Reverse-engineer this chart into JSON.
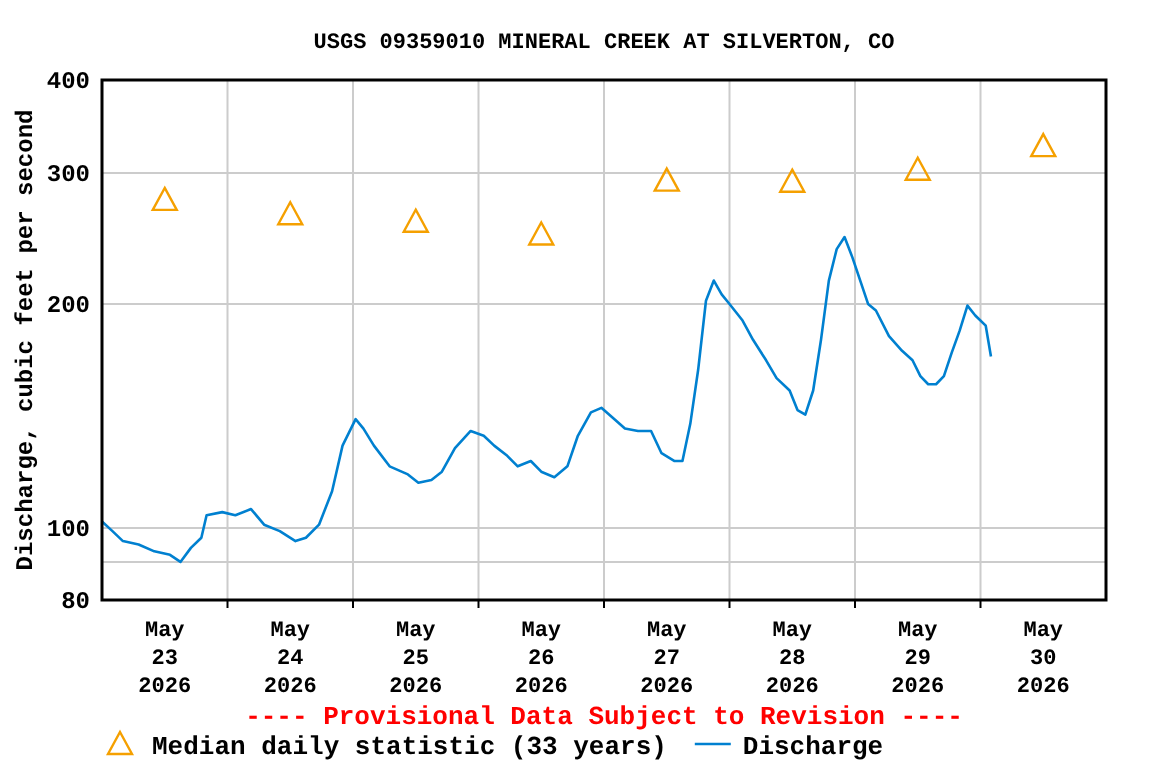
{
  "chart_data": {
    "type": "line",
    "title": "USGS 09359010 MINERAL CREEK AT SILVERTON, CO",
    "ylabel": "Discharge, cubic feet per second",
    "log": true,
    "grid": true,
    "legend": "bottom",
    "annotations": [
      "---- Provisional Data Subject to Revision ----"
    ],
    "xlim": [
      "2026-05-23T00:00",
      "2026-05-31T00:00"
    ],
    "xticks": [
      {
        "value": "2026-05-23T12:00",
        "label": "May\n23\n2026"
      },
      {
        "value": "2026-05-24T00:00",
        "label": null
      },
      {
        "value": "2026-05-24T12:00",
        "label": "May\n24\n2026"
      },
      {
        "value": "2026-05-25T00:00",
        "label": null
      },
      {
        "value": "2026-05-25T12:00",
        "label": "May\n25\n2026"
      },
      {
        "value": "2026-05-26T00:00",
        "label": null
      },
      {
        "value": "2026-05-26T12:00",
        "label": "May\n26\n2026"
      },
      {
        "value": "2026-05-27T00:00",
        "label": null
      },
      {
        "value": "2026-05-27T12:00",
        "label": "May\n27\n2026"
      },
      {
        "value": "2026-05-28T00:00",
        "label": null
      },
      {
        "value": "2026-05-28T12:00",
        "label": "May\n28\n2026"
      },
      {
        "value": "2026-05-29T00:00",
        "label": null
      },
      {
        "value": "2026-05-29T12:00",
        "label": "May\n29\n2026"
      },
      {
        "value": "2026-05-30T00:00",
        "label": null
      },
      {
        "value": "2026-05-30T12:00",
        "label": "May\n30\n2026"
      }
    ],
    "ylim": [
      80,
      400
    ],
    "yticks": [
      80,
      {
        "value": 90,
        "label": null
      },
      100,
      200,
      300,
      400
    ],
    "series": [
      {
        "name": "Median daily statistic (33 years)",
        "type": "scatter",
        "marker": "triangle",
        "color": "#f5a000",
        "x": [
          "2026-05-23T12:00",
          "2026-05-24T12:00",
          "2026-05-25T12:00",
          "2026-05-26T12:00",
          "2026-05-27T12:00",
          "2026-05-28T12:00",
          "2026-05-29T12:00",
          "2026-05-30T12:00"
        ],
        "values": [
          276,
          264,
          258,
          248,
          293,
          292,
          303,
          326
        ]
      },
      {
        "name": "Discharge",
        "color": "#0080d0",
        "line_style": "solid",
        "x": [
          "2026-05-23T00:00",
          "2026-05-23T02:00",
          "2026-05-23T04:00",
          "2026-05-23T07:00",
          "2026-05-23T10:00",
          "2026-05-23T13:00",
          "2026-05-23T15:00",
          "2026-05-23T17:00",
          "2026-05-23T19:00",
          "2026-05-23T20:00",
          "2026-05-23T23:00",
          "2026-05-24T01:30",
          "2026-05-24T04:30",
          "2026-05-24T07:00",
          "2026-05-24T10:00",
          "2026-05-24T13:00",
          "2026-05-24T15:00",
          "2026-05-24T17:30",
          "2026-05-24T20:00",
          "2026-05-24T22:00",
          "2026-05-25T00:30",
          "2026-05-25T02:00",
          "2026-05-25T04:00",
          "2026-05-25T07:00",
          "2026-05-25T10:30",
          "2026-05-25T12:30",
          "2026-05-25T15:00",
          "2026-05-25T17:00",
          "2026-05-25T19:30",
          "2026-05-25T22:30",
          "2026-05-26T01:00",
          "2026-05-26T03:00",
          "2026-05-26T05:30",
          "2026-05-26T07:30",
          "2026-05-26T10:00",
          "2026-05-26T12:00",
          "2026-05-26T14:30",
          "2026-05-26T17:00",
          "2026-05-26T19:00",
          "2026-05-26T21:30",
          "2026-05-26T23:30",
          "2026-05-27T02:00",
          "2026-05-27T04:00",
          "2026-05-27T06:30",
          "2026-05-27T09:00",
          "2026-05-27T11:00",
          "2026-05-27T13:30",
          "2026-05-27T15:00",
          "2026-05-27T16:30",
          "2026-05-27T18:00",
          "2026-05-27T19:30",
          "2026-05-27T21:00",
          "2026-05-27T22:30",
          "2026-05-28T00:00",
          "2026-05-28T02:30",
          "2026-05-28T04:30",
          "2026-05-28T07:00",
          "2026-05-28T09:00",
          "2026-05-28T11:30",
          "2026-05-28T13:00",
          "2026-05-28T14:30",
          "2026-05-28T16:00",
          "2026-05-28T17:30",
          "2026-05-28T19:00",
          "2026-05-28T20:30",
          "2026-05-28T22:00",
          "2026-05-28T23:30",
          "2026-05-29T01:00",
          "2026-05-29T02:30",
          "2026-05-29T04:00",
          "2026-05-29T06:30",
          "2026-05-29T09:00",
          "2026-05-29T11:00",
          "2026-05-29T12:30",
          "2026-05-29T14:00",
          "2026-05-29T15:30",
          "2026-05-29T17:00",
          "2026-05-29T18:30",
          "2026-05-29T20:00",
          "2026-05-29T21:30",
          "2026-05-29T23:00",
          "2026-05-30T01:00",
          "2026-05-30T02:00"
        ],
        "values": [
          102,
          99,
          96,
          95,
          93,
          92,
          90,
          94,
          97,
          104,
          105,
          104,
          106,
          101,
          99,
          96,
          97,
          101,
          112,
          129,
          140,
          136,
          129,
          121,
          118,
          115,
          116,
          119,
          128,
          135,
          133,
          129,
          125,
          121,
          123,
          119,
          117,
          121,
          133,
          143,
          145,
          140,
          136,
          135,
          135,
          126,
          123,
          123,
          138,
          163,
          202,
          215,
          206,
          200,
          190,
          179,
          168,
          159,
          153,
          144,
          142,
          153,
          179,
          215,
          237,
          246,
          231,
          215,
          200,
          196,
          181,
          173,
          168,
          160,
          156,
          156,
          160,
          172,
          184,
          199,
          193,
          187,
          170
        ]
      }
    ]
  }
}
